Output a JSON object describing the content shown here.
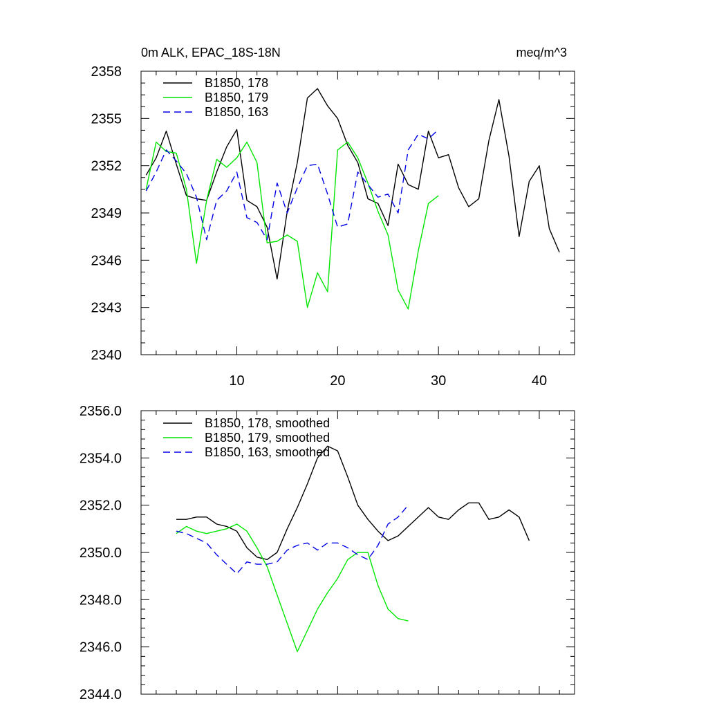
{
  "header": {
    "left_title": "0m ALK, EPAC_18S-18N",
    "right_title": "meq/m^3"
  },
  "chart_data": [
    {
      "type": "line",
      "title": "0m ALK, EPAC_18S-18N",
      "units": "meq/m^3",
      "xlim": [
        0.5,
        43.5
      ],
      "ylim": [
        2340,
        2358
      ],
      "xticks": [
        10,
        20,
        30,
        40
      ],
      "xtick_labels": [
        "10",
        "20",
        "30",
        "40"
      ],
      "yticks": [
        2340,
        2343,
        2346,
        2349,
        2352,
        2355,
        2358
      ],
      "ytick_labels": [
        "2340",
        "2343",
        "2346",
        "2349",
        "2352",
        "2355",
        "2358"
      ],
      "legend_position": "top-left",
      "series": [
        {
          "name": "B1850, 178",
          "color": "#000000",
          "dash": "solid",
          "x": [
            1,
            2,
            3,
            4,
            5,
            6,
            7,
            8,
            9,
            10,
            11,
            12,
            13,
            14,
            15,
            16,
            17,
            18,
            19,
            20,
            21,
            22,
            23,
            24,
            25,
            26,
            27,
            28,
            29,
            30,
            31,
            32,
            33,
            34,
            35,
            36,
            37,
            38,
            39,
            40,
            41,
            42
          ],
          "values": [
            2351.4,
            2352.5,
            2354.2,
            2352.1,
            2350.1,
            2349.9,
            2349.8,
            2351.6,
            2353.2,
            2354.3,
            2349.8,
            2349.4,
            2348.1,
            2344.8,
            2349.1,
            2352.2,
            2356.3,
            2356.9,
            2355.8,
            2355.0,
            2353.3,
            2352.2,
            2349.9,
            2349.6,
            2348.2,
            2352.1,
            2350.8,
            2350.5,
            2354.2,
            2352.5,
            2352.7,
            2350.6,
            2349.4,
            2349.9,
            2353.6,
            2356.2,
            2352.6,
            2347.5,
            2351.0,
            2352.0,
            2348.0,
            2346.5
          ]
        },
        {
          "name": "B1850, 179",
          "color": "#00e600",
          "dash": "solid",
          "x": [
            1,
            2,
            3,
            4,
            5,
            6,
            7,
            8,
            9,
            10,
            11,
            12,
            13,
            14,
            15,
            16,
            17,
            18,
            19,
            20,
            21,
            22,
            23,
            24,
            25,
            26,
            27,
            28,
            29,
            30
          ],
          "values": [
            2350.5,
            2353.5,
            2352.9,
            2352.8,
            2350.5,
            2345.8,
            2349.8,
            2352.4,
            2351.9,
            2352.5,
            2353.5,
            2352.2,
            2347.1,
            2347.2,
            2347.6,
            2347.2,
            2343.0,
            2345.2,
            2344.0,
            2353.0,
            2353.5,
            2352.5,
            2350.9,
            2349.1,
            2347.6,
            2344.1,
            2342.9,
            2346.6,
            2349.6,
            2350.1
          ]
        },
        {
          "name": "B1850, 163",
          "color": "#0000e6",
          "dash": "dashed",
          "x": [
            1,
            2,
            3,
            4,
            5,
            6,
            7,
            8,
            9,
            10,
            11,
            12,
            13,
            14,
            15,
            16,
            17,
            18,
            19,
            20,
            21,
            22,
            23,
            24,
            25,
            26,
            27,
            28,
            29,
            30
          ],
          "values": [
            2350.4,
            2351.6,
            2353.0,
            2352.3,
            2351.5,
            2350.0,
            2347.3,
            2349.8,
            2350.4,
            2351.6,
            2348.7,
            2348.4,
            2347.3,
            2350.9,
            2349.0,
            2350.6,
            2352.0,
            2352.1,
            2350.2,
            2348.1,
            2348.3,
            2351.6,
            2350.8,
            2350.0,
            2350.2,
            2349.0,
            2353.0,
            2354.0,
            2353.7,
            2354.3
          ]
        }
      ]
    },
    {
      "type": "line",
      "title": "",
      "xlim": [
        0.5,
        43.5
      ],
      "ylim": [
        2344.0,
        2356.0
      ],
      "xticks": [
        10,
        20,
        30,
        40
      ],
      "xtick_labels": [
        "",
        "",
        "",
        ""
      ],
      "yticks": [
        2344.0,
        2346.0,
        2348.0,
        2350.0,
        2352.0,
        2354.0,
        2356.0
      ],
      "ytick_labels": [
        "2344.0",
        "2346.0",
        "2348.0",
        "2350.0",
        "2352.0",
        "2354.0",
        "2356.0"
      ],
      "legend_position": "top-left",
      "series": [
        {
          "name": "B1850, 178, smoothed",
          "color": "#000000",
          "dash": "solid",
          "x": [
            4,
            5,
            6,
            7,
            8,
            9,
            10,
            11,
            12,
            13,
            14,
            15,
            16,
            17,
            18,
            19,
            20,
            21,
            22,
            23,
            24,
            25,
            26,
            27,
            28,
            29,
            30,
            31,
            32,
            33,
            34,
            35,
            36,
            37,
            38,
            39
          ],
          "values": [
            2351.4,
            2351.4,
            2351.5,
            2351.5,
            2351.2,
            2351.1,
            2350.9,
            2350.2,
            2349.8,
            2349.7,
            2350.0,
            2351.0,
            2351.9,
            2352.9,
            2354.0,
            2354.5,
            2354.3,
            2353.2,
            2352.0,
            2351.4,
            2350.9,
            2350.5,
            2350.7,
            2351.1,
            2351.5,
            2351.9,
            2351.5,
            2351.4,
            2351.8,
            2352.1,
            2352.1,
            2351.4,
            2351.5,
            2351.8,
            2351.5,
            2350.5
          ]
        },
        {
          "name": "B1850, 179, smoothed",
          "color": "#00e600",
          "dash": "solid",
          "x": [
            4,
            5,
            6,
            7,
            8,
            9,
            10,
            11,
            12,
            13,
            14,
            15,
            16,
            17,
            18,
            19,
            20,
            21,
            22,
            23,
            24,
            25,
            26,
            27
          ],
          "values": [
            2350.8,
            2351.1,
            2350.9,
            2350.8,
            2350.9,
            2351.0,
            2351.2,
            2350.9,
            2350.2,
            2349.4,
            2348.2,
            2347.0,
            2345.8,
            2346.7,
            2347.6,
            2348.3,
            2348.9,
            2349.7,
            2350.0,
            2350.0,
            2348.6,
            2347.6,
            2347.2,
            2347.1
          ]
        },
        {
          "name": "B1850, 163, smoothed",
          "color": "#0000e6",
          "dash": "dashed",
          "x": [
            4,
            5,
            6,
            7,
            8,
            9,
            10,
            11,
            12,
            13,
            14,
            15,
            16,
            17,
            18,
            19,
            20,
            21,
            22,
            23,
            24,
            25,
            26,
            27
          ],
          "values": [
            2350.9,
            2350.8,
            2350.6,
            2350.4,
            2349.9,
            2349.5,
            2349.1,
            2349.6,
            2349.5,
            2349.5,
            2349.6,
            2350.1,
            2350.3,
            2350.4,
            2350.1,
            2350.4,
            2350.4,
            2350.2,
            2349.9,
            2349.7,
            2350.3,
            2351.2,
            2351.5,
            2352.0
          ]
        }
      ]
    }
  ]
}
